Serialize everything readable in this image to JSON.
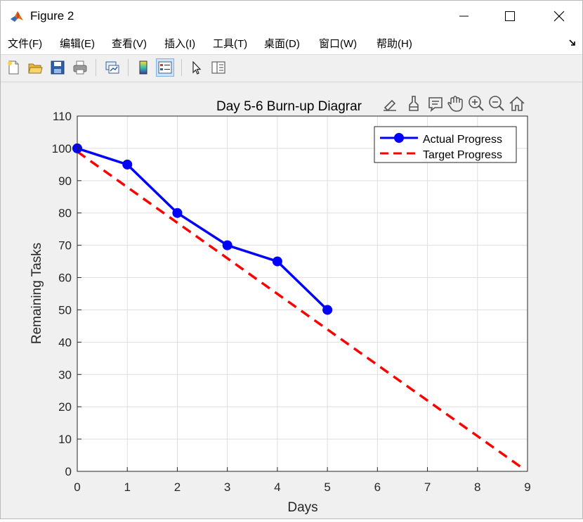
{
  "window": {
    "title": "Figure 2",
    "controls": {
      "minimize": "minimize",
      "maximize": "maximize",
      "close": "close"
    }
  },
  "menubar": {
    "items": [
      "文件(F)",
      "编辑(E)",
      "查看(V)",
      "插入(I)",
      "工具(T)",
      "桌面(D)",
      "窗口(W)",
      "帮助(H)"
    ]
  },
  "toolbar": {
    "buttons": [
      "new-file-icon",
      "open-folder-icon",
      "save-icon",
      "print-icon",
      "link-plot-icon",
      "colorbar-icon",
      "legend-icon",
      "edit-pointer-icon",
      "property-inspector-icon"
    ]
  },
  "axes_toolbar": {
    "buttons": [
      "brush-edit-icon",
      "data-brush-icon",
      "data-tip-icon",
      "pan-hand-icon",
      "zoom-in-icon",
      "zoom-out-icon",
      "home-icon"
    ]
  },
  "chart_data": {
    "type": "line",
    "title": "Day 5-6 Burn-up Diagrar",
    "xlabel": "Days",
    "ylabel": "Remaining Tasks",
    "xlim": [
      0,
      9
    ],
    "ylim": [
      0,
      110
    ],
    "xticks": [
      0,
      1,
      2,
      3,
      4,
      5,
      6,
      7,
      8,
      9
    ],
    "yticks": [
      0,
      10,
      20,
      30,
      40,
      50,
      60,
      70,
      80,
      90,
      100,
      110
    ],
    "grid": true,
    "legend_position": "top-right",
    "series": [
      {
        "name": "Actual Progress",
        "style": "solid-markers",
        "color": "#0000ff",
        "x": [
          0,
          1,
          2,
          3,
          4,
          5
        ],
        "y": [
          100,
          95,
          80,
          70,
          65,
          50
        ]
      },
      {
        "name": "Target Progress",
        "style": "dashed",
        "color": "#ff0000",
        "x": [
          0,
          8.9
        ],
        "y": [
          99,
          1
        ]
      }
    ]
  }
}
